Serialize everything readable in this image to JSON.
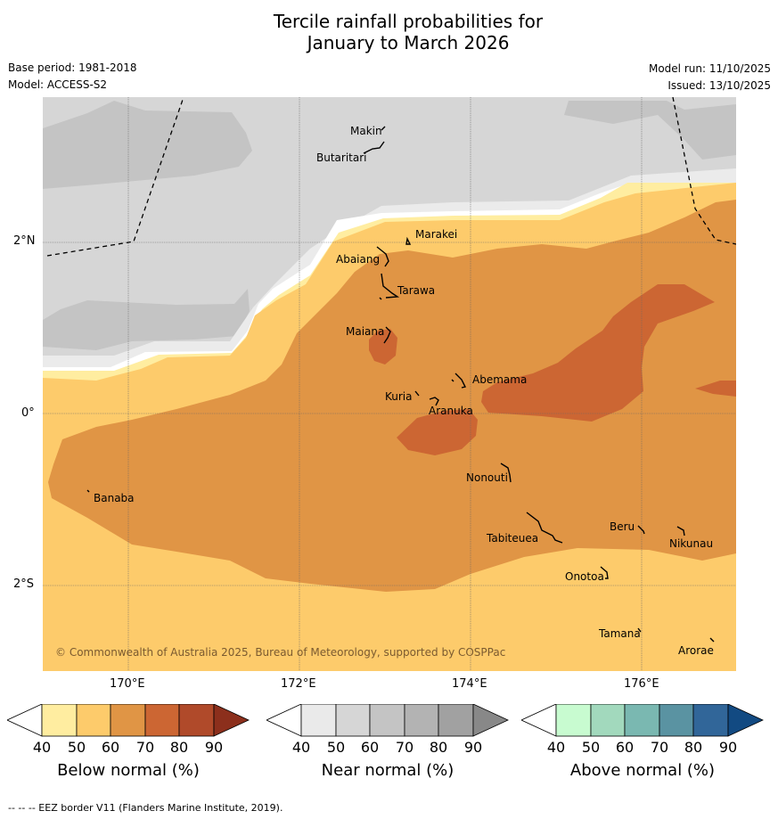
{
  "title": {
    "line1": "Tercile rainfall probabilities for",
    "line2": "January to March 2026"
  },
  "meta": {
    "base_period": "Base period: 1981-2018",
    "model": "Model: ACCESS-S2",
    "model_run": "Model run: 11/10/2025",
    "issued": "Issued: 13/10/2025"
  },
  "map": {
    "latitudes": [
      "2°N",
      "0°",
      "2°S"
    ],
    "longitudes": [
      "170°E",
      "172°E",
      "174°E",
      "176°E"
    ],
    "copyright": "© Commonwealth of Australia 2025, Bureau of Meteorology, supported by COSPPac",
    "places": [
      {
        "id": "makin",
        "name": "Makin"
      },
      {
        "id": "butaritari",
        "name": "Butaritari"
      },
      {
        "id": "marakei",
        "name": "Marakei"
      },
      {
        "id": "abaiang",
        "name": "Abaiang"
      },
      {
        "id": "tarawa",
        "name": "Tarawa"
      },
      {
        "id": "maiana",
        "name": "Maiana"
      },
      {
        "id": "abemama",
        "name": "Abemama"
      },
      {
        "id": "kuria",
        "name": "Kuria"
      },
      {
        "id": "aranuka",
        "name": "Aranuka"
      },
      {
        "id": "banaba",
        "name": "Banaba"
      },
      {
        "id": "nonouti",
        "name": "Nonouti"
      },
      {
        "id": "beru",
        "name": "Beru"
      },
      {
        "id": "tabiteuea",
        "name": "Tabiteuea"
      },
      {
        "id": "nikunau",
        "name": "Nikunau"
      },
      {
        "id": "onotoa",
        "name": "Onotoa"
      },
      {
        "id": "tamana",
        "name": "Tamana"
      },
      {
        "id": "arorae",
        "name": "Arorae"
      }
    ]
  },
  "colorbars": {
    "ticks": [
      "40",
      "50",
      "60",
      "70",
      "80",
      "90"
    ],
    "below": {
      "label": "Below normal (%)",
      "colors": [
        "#ffeda0",
        "#fdcb6b",
        "#e09545",
        "#cc6633",
        "#b04a2a",
        "#8c2f1c"
      ]
    },
    "near": {
      "label": "Near normal (%)",
      "colors": [
        "#eaeaea",
        "#d6d6d6",
        "#c4c4c4",
        "#b3b3b3",
        "#a1a1a1",
        "#888888"
      ]
    },
    "above": {
      "label": "Above normal (%)",
      "colors": [
        "#c8fbd0",
        "#a2d9bd",
        "#7ab8b1",
        "#5a93a2",
        "#316699",
        "#124a82"
      ]
    }
  },
  "footnote": "--  --  -- EEZ border V11 (Flanders Marine Institute, 2019)."
}
